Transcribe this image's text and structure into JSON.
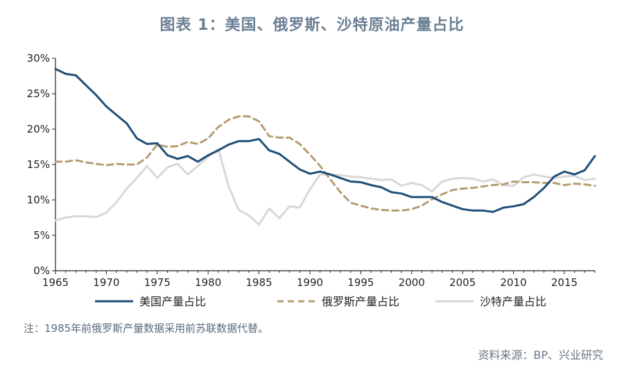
{
  "title": "图表 1：美国、俄罗斯、沙特原油产量占比",
  "note": "注：1985年前俄罗斯产量数据采用前苏联数据代替。",
  "source": "资料来源：BP、兴业研究",
  "chart_data": {
    "type": "line",
    "ylim": [
      0,
      30
    ],
    "xlim": [
      1965,
      2018
    ],
    "yticks": [
      0,
      5,
      10,
      15,
      20,
      25,
      30
    ],
    "ytick_labels": [
      "0%",
      "5%",
      "10%",
      "15%",
      "20%",
      "25%",
      "30%"
    ],
    "xticks": [
      1965,
      1970,
      1975,
      1980,
      1985,
      1990,
      1995,
      2000,
      2005,
      2010,
      2015
    ],
    "xtick_labels": [
      "1965",
      "1970",
      "1975",
      "1980",
      "1985",
      "1990",
      "1995",
      "2000",
      "2005",
      "2010",
      "2015"
    ],
    "x": [
      1965,
      1966,
      1967,
      1968,
      1969,
      1970,
      1971,
      1972,
      1973,
      1974,
      1975,
      1976,
      1977,
      1978,
      1979,
      1980,
      1981,
      1982,
      1983,
      1984,
      1985,
      1986,
      1987,
      1988,
      1989,
      1990,
      1991,
      1992,
      1993,
      1994,
      1995,
      1996,
      1997,
      1998,
      1999,
      2000,
      2001,
      2002,
      2003,
      2004,
      2005,
      2006,
      2007,
      2008,
      2009,
      2010,
      2011,
      2012,
      2013,
      2014,
      2015,
      2016,
      2017,
      2018
    ],
    "series": [
      {
        "name": "美国产量占比",
        "color": "#1f4e79",
        "style": "solid",
        "values": [
          28.5,
          27.8,
          27.6,
          26.2,
          24.8,
          23.2,
          22.0,
          20.8,
          18.7,
          17.9,
          18.0,
          16.3,
          15.8,
          16.2,
          15.4,
          16.3,
          17.0,
          17.8,
          18.3,
          18.3,
          18.6,
          17.0,
          16.5,
          15.4,
          14.3,
          13.7,
          14.0,
          13.6,
          13.1,
          12.6,
          12.5,
          12.1,
          11.8,
          11.1,
          10.9,
          10.4,
          10.4,
          10.4,
          9.7,
          9.2,
          8.7,
          8.5,
          8.5,
          8.3,
          8.9,
          9.1,
          9.4,
          10.4,
          11.7,
          13.3,
          14.0,
          13.6,
          14.2,
          16.2
        ]
      },
      {
        "name": "俄罗斯产量占比",
        "color": "#b59d72",
        "style": "dashed",
        "values": [
          15.4,
          15.4,
          15.6,
          15.3,
          15.1,
          14.9,
          15.1,
          15.0,
          15.0,
          16.0,
          17.8,
          17.5,
          17.6,
          18.2,
          17.9,
          18.7,
          20.3,
          21.3,
          21.8,
          21.8,
          21.1,
          19.0,
          18.8,
          18.8,
          17.9,
          16.4,
          14.8,
          12.9,
          11.1,
          9.6,
          9.2,
          8.8,
          8.6,
          8.5,
          8.5,
          8.7,
          9.2,
          10.1,
          10.8,
          11.4,
          11.6,
          11.7,
          11.9,
          12.1,
          12.2,
          12.6,
          12.5,
          12.5,
          12.4,
          12.4,
          12.1,
          12.3,
          12.2,
          12.0
        ]
      },
      {
        "name": "沙特产量占比",
        "color": "#d8d8d8",
        "style": "solid",
        "values": [
          7.1,
          7.5,
          7.7,
          7.7,
          7.6,
          8.2,
          9.7,
          11.6,
          13.1,
          14.8,
          13.1,
          14.6,
          15.1,
          13.6,
          14.8,
          16.1,
          17.2,
          12.0,
          8.6,
          7.8,
          6.5,
          8.8,
          7.4,
          9.1,
          8.9,
          11.5,
          13.6,
          13.6,
          13.5,
          13.3,
          13.2,
          13.0,
          12.8,
          12.9,
          12.0,
          12.4,
          12.1,
          11.2,
          12.6,
          13.0,
          13.1,
          13.0,
          12.6,
          12.9,
          12.1,
          12.0,
          13.2,
          13.6,
          13.3,
          13.1,
          13.3,
          13.4,
          12.8,
          13.0
        ]
      }
    ]
  }
}
